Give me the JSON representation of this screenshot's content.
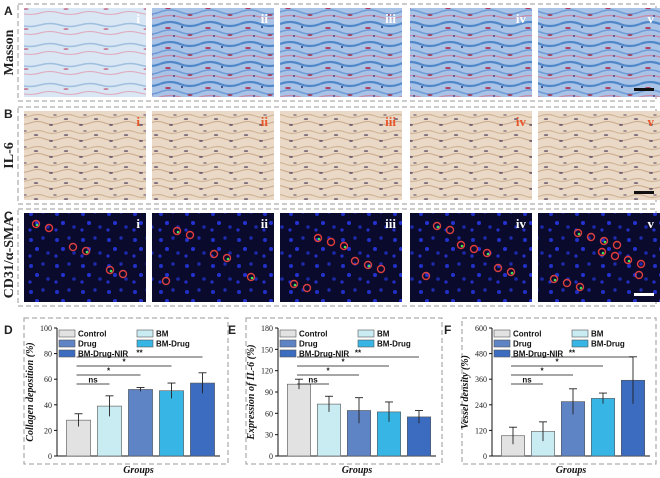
{
  "micrographs": {
    "columns": [
      "i",
      "ii",
      "iii",
      "iv",
      "v"
    ],
    "rows": [
      {
        "letter": "A",
        "label": "Masson",
        "roman_color": "#ffffff",
        "has_scale_bar": true
      },
      {
        "letter": "B",
        "label": "IL-6",
        "roman_color": "#e8552a",
        "has_scale_bar": true
      },
      {
        "letter": "C",
        "label": "CD31/α-SMA",
        "roman_color": "#ffffff",
        "has_scale_bar": true
      }
    ]
  },
  "legend_labels": [
    "Control",
    "BM",
    "Drug",
    "BM-Drug",
    "BM-Drug-NIR"
  ],
  "colors": {
    "bars": [
      "#e2e2e2",
      "#c9ecf2",
      "#5f84c6",
      "#37b6e6",
      "#3b6cc0"
    ],
    "tissue_blue": "#4f87c8",
    "tissue_beige": "#e7d3bd",
    "fluor_bg": "#0a0a2c"
  },
  "chart_data": [
    {
      "letter": "D",
      "type": "bar",
      "categories": [
        "Control",
        "BM",
        "Drug",
        "BM-Drug",
        "BM-Drug-NIR"
      ],
      "values": [
        28,
        39,
        52,
        51,
        57
      ],
      "errors": [
        5,
        8,
        1.5,
        6,
        8
      ],
      "ylabel": "Collagen deposition (%)",
      "xlabel": "Groups",
      "ylim": [
        0,
        100
      ],
      "yticks": [
        0,
        20,
        40,
        60,
        80,
        100
      ],
      "significance": [
        "ns",
        "*",
        "*",
        "**"
      ]
    },
    {
      "letter": "E",
      "type": "bar",
      "categories": [
        "Control",
        "BM",
        "Drug",
        "BM-Drug",
        "BM-Drug-NIR"
      ],
      "values": [
        101,
        73,
        64,
        62,
        55
      ],
      "errors": [
        7,
        11,
        18,
        14,
        9
      ],
      "ylabel": "Expression of IL-6 (%)",
      "xlabel": "Groups",
      "ylim": [
        0,
        180
      ],
      "yticks": [
        0,
        30,
        60,
        90,
        120,
        150,
        180
      ],
      "significance": [
        "ns",
        "*",
        "*",
        "**"
      ]
    },
    {
      "letter": "F",
      "type": "bar",
      "categories": [
        "Control",
        "BM",
        "Drug",
        "BM-Drug",
        "BM-Drug-NIR"
      ],
      "values": [
        95,
        115,
        255,
        270,
        355
      ],
      "errors": [
        40,
        45,
        60,
        25,
        110
      ],
      "ylabel": "Vessel density (%)",
      "xlabel": "Groups",
      "ylim": [
        0,
        600
      ],
      "yticks": [
        0,
        120,
        240,
        360,
        480,
        600
      ],
      "significance": [
        "ns",
        "*",
        "*",
        "**"
      ]
    }
  ]
}
